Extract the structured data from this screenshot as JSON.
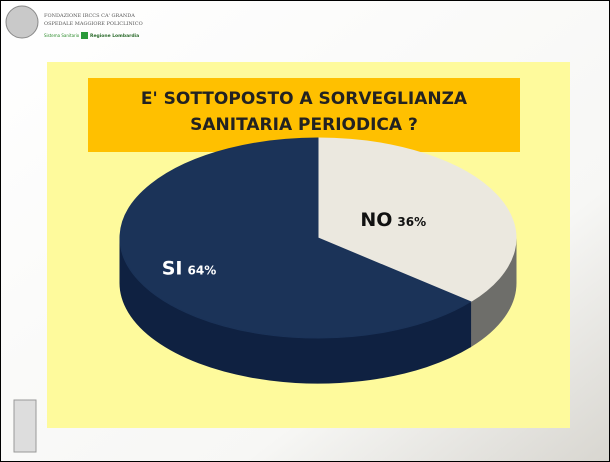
{
  "header": {
    "institution": "FONDAZIONE IRCCS CA' GRANDA",
    "hospital": "OSPEDALE MAGGIORE POLICLINICO",
    "system": "Sistema Sanitario",
    "region": "Regione Lombardia"
  },
  "chart_data": {
    "type": "pie",
    "title": "E' SOTTOPOSTO A SORVEGLIANZA SANITARIA PERIODICA ?",
    "categories": [
      "NO",
      "SI"
    ],
    "values": [
      36,
      64
    ],
    "value_labels": [
      "36%",
      "64%"
    ],
    "colors": [
      "#ebe8df",
      "#1b3358"
    ]
  }
}
